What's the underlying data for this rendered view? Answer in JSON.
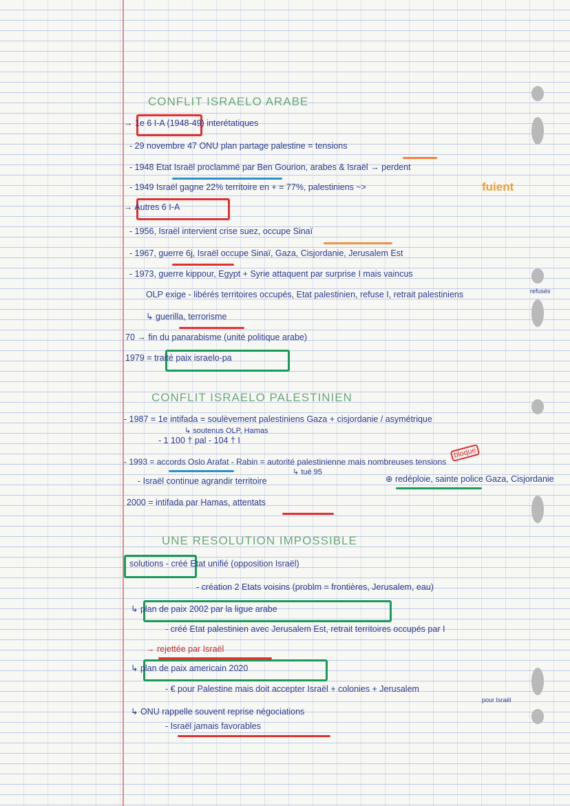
{
  "sections": [
    {
      "title": "CONFLIT ISRAELO ARABE",
      "lines": [
        "→ 1e 6 I-A  (1948-49)  interétatiques",
        "- 29 novembre 47  ONU plan partage palestine = tensions",
        "- 1948  Etat Israël proclammé par Ben Gourion, arabes & Israël → perdent",
        "- 1949  Israël gagne 22% territoire en + = 77%, palestiniens ~>",
        "fuient",
        "→ Autres 6 I-A",
        "- 1956, Israël intervient crise suez, occupe Sinaï",
        "- 1967, guerre 6j, Israël occupe Sinaï, Gaza, Cisjordanie, Jerusalem Est",
        "- 1973, guerre kippour, Egypt + Syrie attaquent par surprise I mais vaincus",
        "OLP exige - libérés territoires occupés, Etat palestinien, refuse I, retrait palestiniens",
        "refusés",
        "↳ guerilla, terrorisme",
        "70 → fin du panarabisme (unité politique arabe)",
        "1979 = traité paix israelo-pa"
      ]
    },
    {
      "title": "CONFLIT ISRAELO PALESTINIEN",
      "lines": [
        "- 1987 = 1e intifada = soulèvement palestiniens Gaza + cisjordanie / asymétrique",
        "↳ soutenus OLP, Hamas",
        "- 1 100 † pal  - 104 † I",
        "- 1993 = accords Oslo  Arafat - Rabin = autorité palestinienne mais nombreuses tensions",
        "bloque",
        "↳ tué 95",
        "- Israël continue agrandir territoire",
        "⊕ redéploie, sainte police Gaza, Cisjordanie",
        "2000 = intifada par Hamas, attentats"
      ]
    },
    {
      "title": "UNE RESOLUTION IMPOSSIBLE",
      "lines": [
        "solutions - créé Etat unifié  (opposition Israël)",
        "- création 2 Etats voisins  (problm = frontières, Jerusalem, eau)",
        "↳ plan de paix 2002 par la ligue arabe",
        "- créé Etat palestinien avec Jerusalem Est, retrait territoires occupés par I",
        "→ rejettée par Israël",
        "↳ plan de paix americain 2020",
        "- € pour Palestine mais doit accepter Israël + colonies + Jerusalem",
        "pour Israël",
        "↳ ONU rappelle souvent reprise négociations",
        "- Israël jamais favorables"
      ]
    }
  ]
}
